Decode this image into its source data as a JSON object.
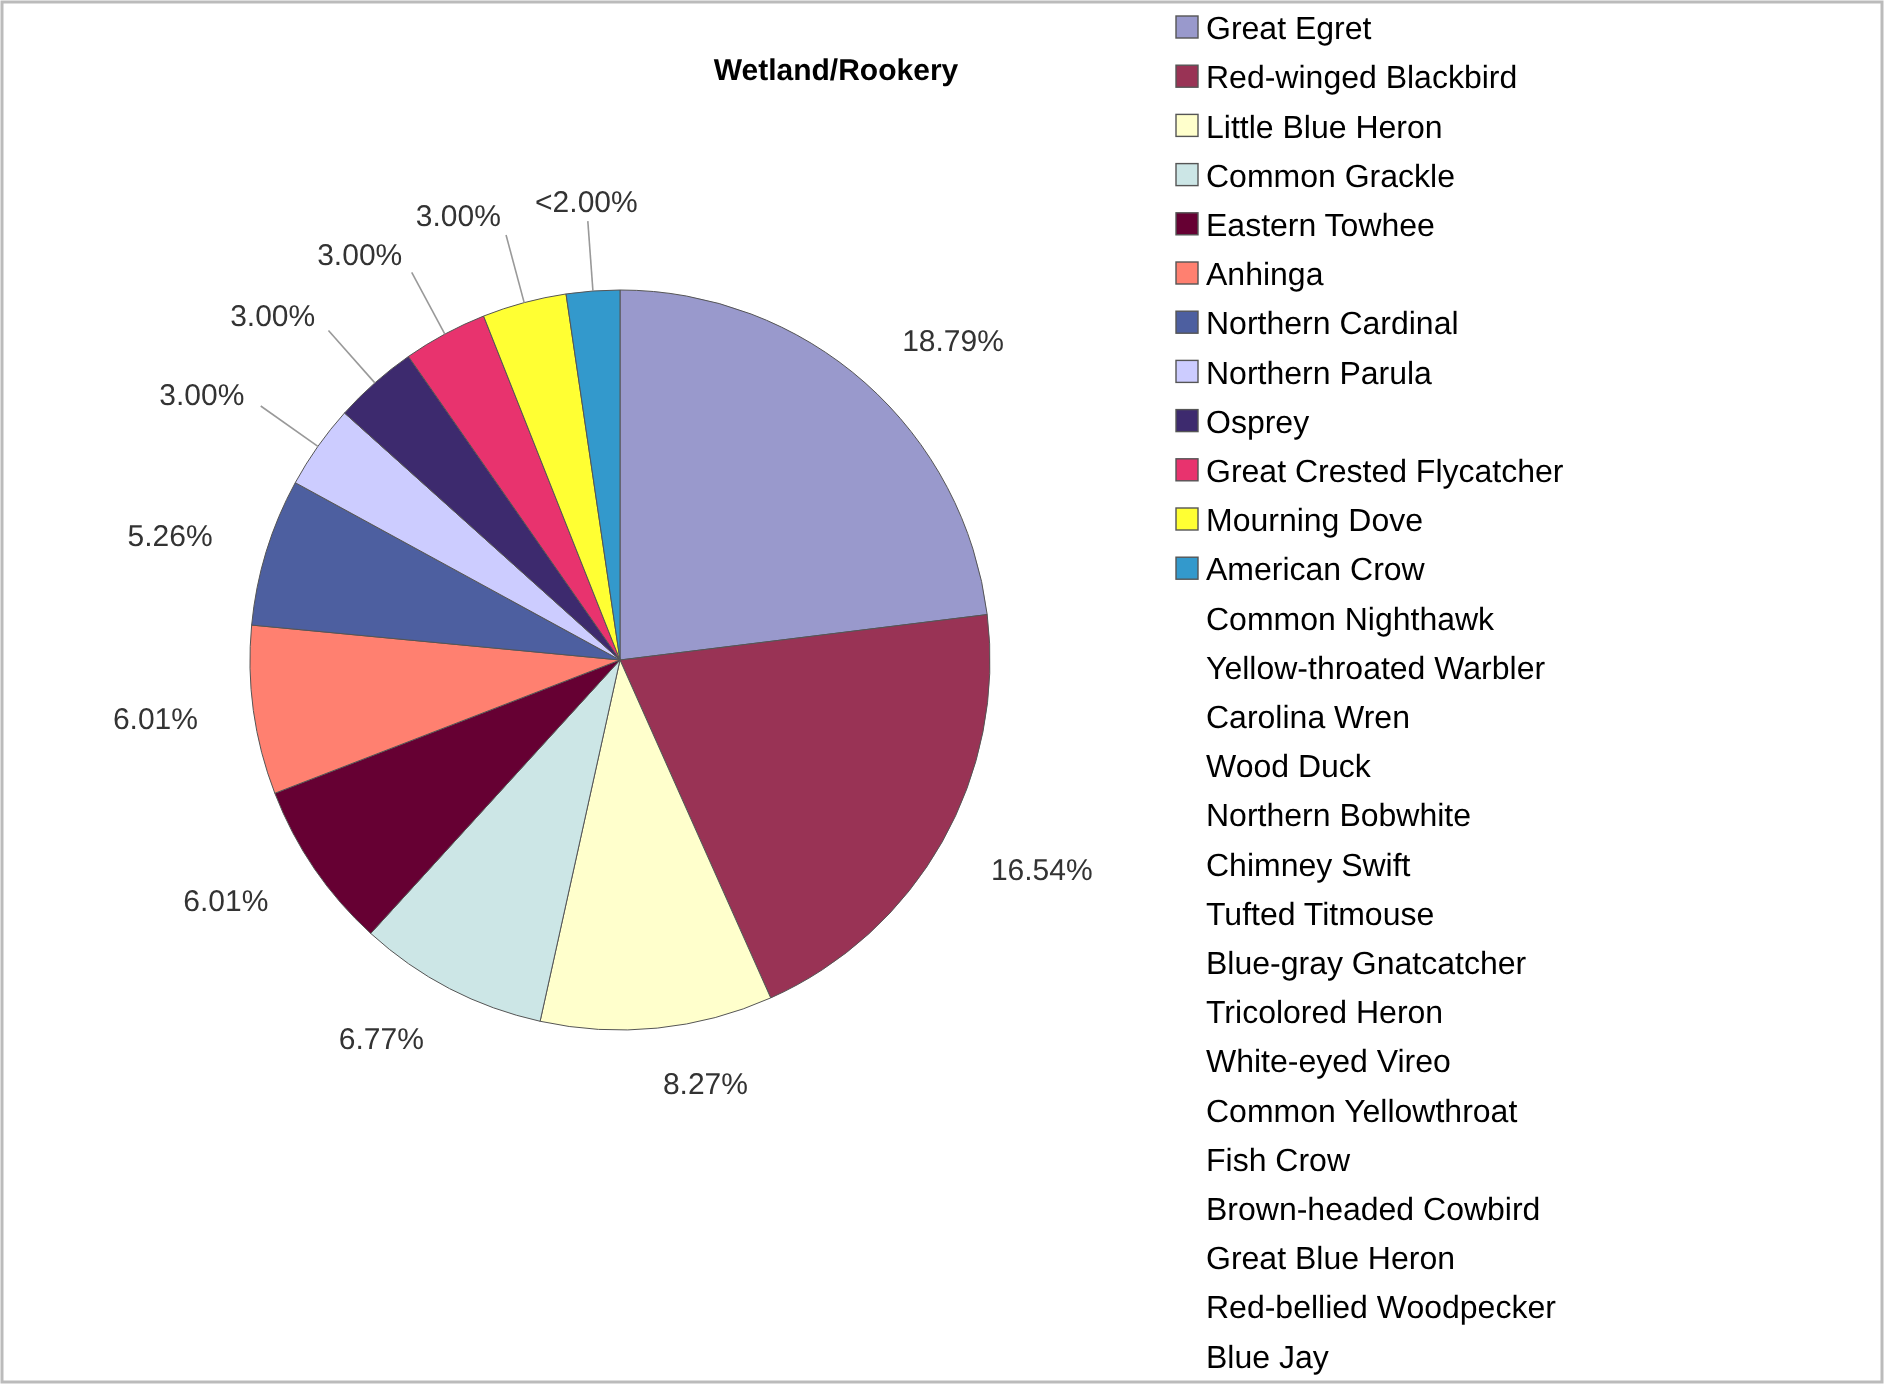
{
  "chart_data": {
    "type": "pie",
    "title": "Wetland/Rookery",
    "categories": [
      "Great Egret",
      "Red-winged Blackbird",
      "Little Blue Heron",
      "Common Grackle",
      "Eastern Towhee",
      "Anhinga",
      "Northern Cardinal",
      "Northern Parula",
      "Osprey",
      "Great Crested Flycatcher",
      "Mourning Dove",
      "American Crow",
      "Common Nighthawk",
      "Yellow-throated Warbler",
      "Carolina Wren",
      "Wood Duck",
      "Northern Bobwhite",
      "Chimney Swift",
      "Tufted Titmouse",
      "Blue-gray Gnatcatcher",
      "Tricolored Heron",
      "White-eyed Vireo",
      "Common Yellowthroat",
      "Fish Crow",
      "Brown-headed Cowbird",
      "Great Blue Heron",
      "Red-bellied Woodpecker",
      "Blue Jay"
    ],
    "values": [
      18.79,
      16.54,
      8.27,
      6.77,
      6.01,
      6.01,
      5.26,
      3.0,
      3.0,
      3.0,
      3.0,
      1.9,
      null,
      null,
      null,
      null,
      null,
      null,
      null,
      null,
      null,
      null,
      null,
      null,
      null,
      null,
      null,
      null
    ],
    "value_labels": [
      "18.79%",
      "16.54%",
      "8.27%",
      "6.77%",
      "6.01%",
      "6.01%",
      "5.26%",
      "3.00%",
      "3.00%",
      "3.00%",
      "3.00%",
      "<2.00%",
      null,
      null,
      null,
      null,
      null,
      null,
      null,
      null,
      null,
      null,
      null,
      null,
      null,
      null,
      null,
      null
    ],
    "colors": [
      "#9999cc",
      "#993355",
      "#ffffcc",
      "#cce6e6",
      "#660033",
      "#ff8070",
      "#4d5fa0",
      "#ccccff",
      "#3d2a6e",
      "#e8336e",
      "#ffff33",
      "#3399cc",
      null,
      null,
      null,
      null,
      null,
      null,
      null,
      null,
      null,
      null,
      null,
      null,
      null,
      null,
      null,
      null
    ],
    "legend": "right"
  }
}
